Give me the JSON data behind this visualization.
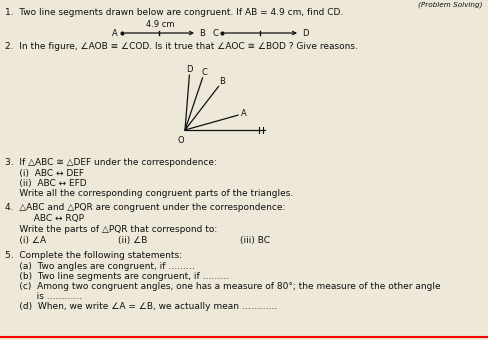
{
  "bg_color": "#ede8d8",
  "text_color": "#111111",
  "fs": 6.5,
  "fs_small": 6.0,
  "q1_main": "1.  Two line segments drawn below are congruent. If AB = 4.9 cm, find CD.",
  "q1_label": "4.9 cm",
  "q2_main": "2.  In the figure, ∠AOB ≡ ∠COD. Is it true that ∠AOC ≅ ∠BOD ? Give reasons.",
  "q3_main": "3.  If △ABC ≅ △DEF under the correspondence:",
  "q3_i": "     (i)  ABC ↔ DEF",
  "q3_ii": "     (ii)  ABC ↔ EFD",
  "q3_write": "     Write all the corresponding congruent parts of the triangles.",
  "q4_main": "4.  △ABC and △PQR are congruent under the correspondence:",
  "q4_corr": "          ABC ↔ RQP",
  "q4_write": "     Write the parts of △PQR that correspond to:",
  "q4_parts_i": "     (i) ∠A",
  "q4_parts_ii": "(ii) ∠B",
  "q4_parts_iii": "(iii) BC",
  "q5_main": "5.  Complete the following statements:",
  "q5_a": "     (a)  Two angles are congruent, if ………",
  "q5_b": "     (b)  Two line segments are congruent, if ………",
  "q5_c": "     (c)  Among two congruent angles, one has a measure of 80°; the measure of the other angle",
  "q5_c2": "           is …………",
  "q5_d": "     (d)  When, we write ∠A = ∠B, we actually mean …………",
  "prob_solving": "(Problem Solving)"
}
